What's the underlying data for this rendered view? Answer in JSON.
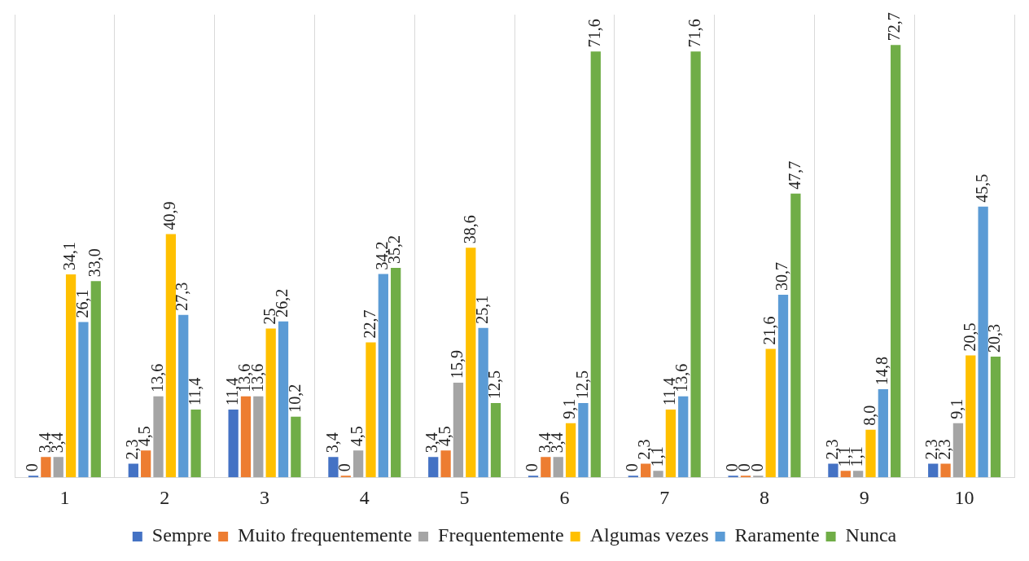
{
  "chart_data": {
    "type": "bar",
    "categories": [
      "1",
      "2",
      "3",
      "4",
      "5",
      "6",
      "7",
      "8",
      "9",
      "10"
    ],
    "series": [
      {
        "name": "Sempre",
        "color": "#4472c4",
        "values": [
          0,
          2.3,
          11.4,
          3.4,
          3.4,
          0,
          0,
          0,
          2.3,
          2.3
        ],
        "value_labels": [
          "0",
          "2,3",
          "11,4",
          "3,4",
          "3,4",
          "0",
          "0",
          "0",
          "2,3",
          "2,3"
        ]
      },
      {
        "name": "Muito frequentemente",
        "color": "#ed7d31",
        "values": [
          3.4,
          4.5,
          13.6,
          0,
          4.5,
          3.4,
          2.3,
          0,
          1.1,
          2.3
        ],
        "value_labels": [
          "3,4",
          "4,5",
          "13,6",
          "0",
          "4,5",
          "3,4",
          "2,3",
          "0",
          "1,1",
          "2,3"
        ]
      },
      {
        "name": "Frequentemente",
        "color": "#a5a5a5",
        "values": [
          3.4,
          13.6,
          13.6,
          4.5,
          15.9,
          3.4,
          1.1,
          0,
          1.1,
          9.1
        ],
        "value_labels": [
          "3,4",
          "13,6",
          "13,6",
          "4,5",
          "15,9",
          "3,4",
          "1,1",
          "0",
          "1,1",
          "9,1"
        ]
      },
      {
        "name": "Algumas vezes",
        "color": "#ffc000",
        "values": [
          34.1,
          40.9,
          25,
          22.7,
          38.6,
          9.1,
          11.4,
          21.6,
          8.0,
          20.5
        ],
        "value_labels": [
          "34,1",
          "40,9",
          "25",
          "22,7",
          "38,6",
          "9,1",
          "11,4",
          "21,6",
          "8,0",
          "20,5"
        ]
      },
      {
        "name": "Raramente",
        "color": "#5b9bd5",
        "values": [
          26.1,
          27.3,
          26.2,
          34.2,
          25.1,
          12.5,
          13.6,
          30.7,
          14.8,
          45.5
        ],
        "value_labels": [
          "26,1",
          "27,3",
          "26,2",
          "34,2",
          "25,1",
          "12,5",
          "13,6",
          "30,7",
          "14,8",
          "45,5"
        ]
      },
      {
        "name": "Nunca",
        "color": "#70ad47",
        "values": [
          33.0,
          11.4,
          10.2,
          35.2,
          12.5,
          71.6,
          71.6,
          47.7,
          72.7,
          20.3
        ],
        "value_labels": [
          "33,0",
          "11,4",
          "10,2",
          "35,2",
          "12,5",
          "71,6",
          "71,6",
          "47,7",
          "72,7",
          "20,3"
        ]
      }
    ],
    "grid": "x",
    "legend": "bottom"
  }
}
